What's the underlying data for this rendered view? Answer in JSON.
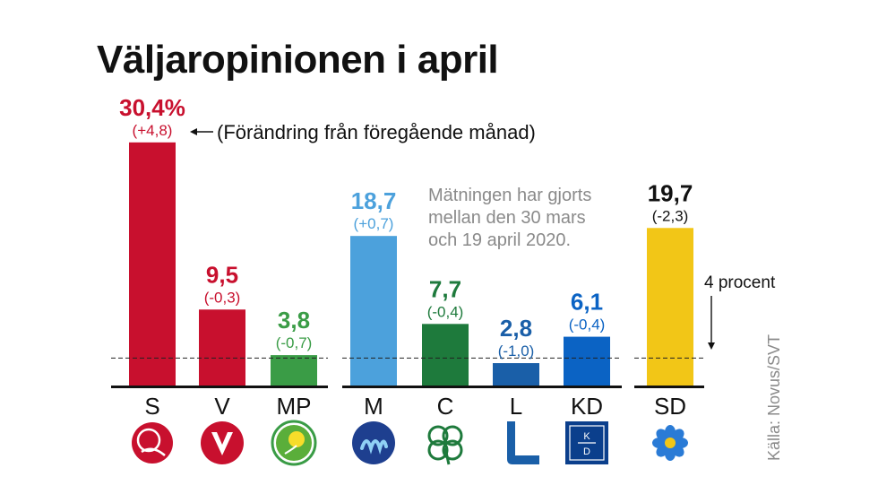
{
  "title": "Väljaropinionen i april",
  "colors": {
    "S": "#c8102e",
    "V": "#c8102e",
    "MP": "#3a9c46",
    "M": "#4ca1dc",
    "C": "#1e7a3c",
    "L": "#1a5fa8",
    "KD": "#0b63c4",
    "SD": "#f2c617",
    "text_dark": "#111111",
    "note_gray": "#8a8a8a"
  },
  "chart_data": {
    "type": "bar",
    "title": "Väljaropinionen i april",
    "categories": [
      "S",
      "V",
      "MP",
      "M",
      "C",
      "L",
      "KD",
      "SD"
    ],
    "values": [
      30.4,
      9.5,
      3.8,
      18.7,
      7.7,
      2.8,
      6.1,
      19.7
    ],
    "value_labels": [
      "30,4%",
      "9,5",
      "3,8",
      "18,7",
      "7,7",
      "2,8",
      "6,1",
      "19,7"
    ],
    "change_labels": [
      "(+4,8)",
      "(-0,3)",
      "(-0,7)",
      "(+0,7)",
      "(-0,4)",
      "(-1,0)",
      "(-0,4)",
      "(-2,3)"
    ],
    "groups": [
      [
        "S",
        "V",
        "MP"
      ],
      [
        "M",
        "C",
        "L",
        "KD"
      ],
      [
        "SD"
      ]
    ],
    "threshold": {
      "value": 4,
      "label": "4 procent"
    },
    "annotation": "(Förändring från föregående månad)",
    "note": [
      "Mätningen har gjorts",
      "mellan den 30 mars",
      "och 19 april 2020."
    ],
    "source": "Källa: Novus/SVT",
    "icons": [
      "s-rose-logo",
      "v-logo",
      "mp-dandelion-logo",
      "m-logo",
      "c-clover-logo",
      "l-logo",
      "kd-logo",
      "sd-flower-logo"
    ]
  }
}
